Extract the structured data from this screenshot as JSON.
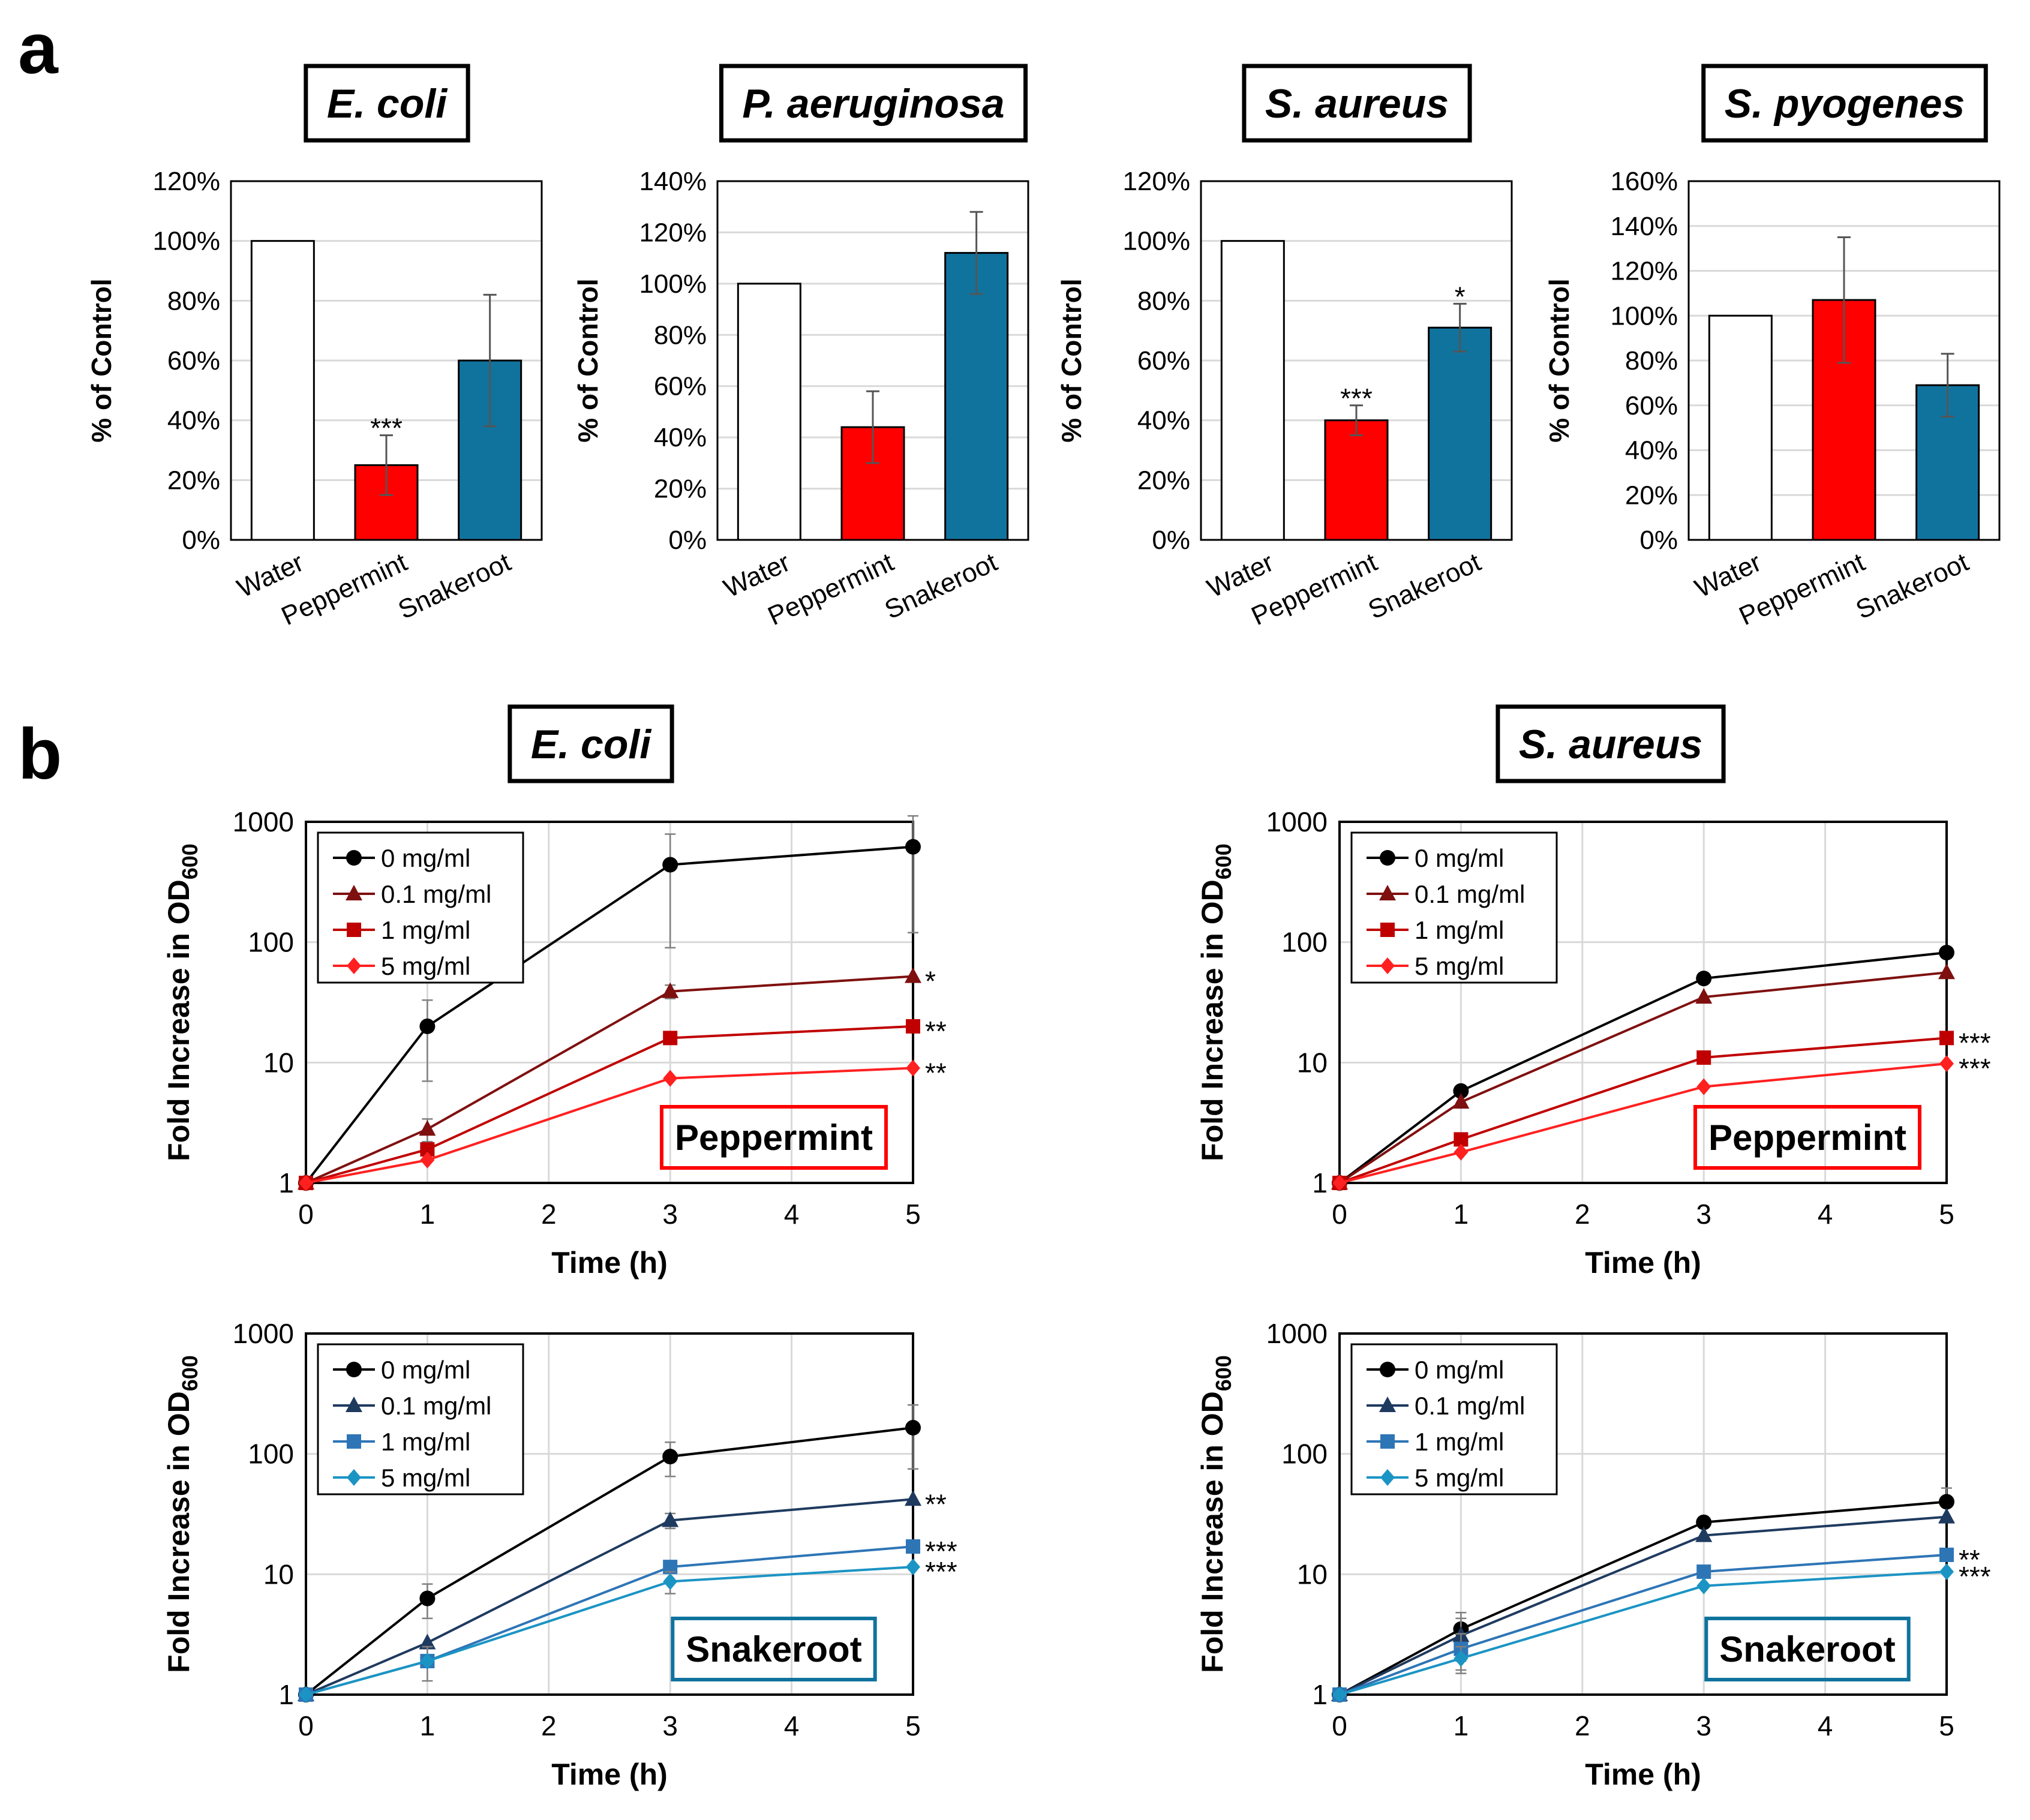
{
  "panels": {
    "a": "a",
    "b": "b"
  },
  "colors": {
    "water": "#ffffff",
    "peppermint": "#ff0000",
    "snakeroot": "#10739e",
    "pep_0": "#000000",
    "pep_01": "#7f1010",
    "pep_1": "#c00000",
    "pep_5": "#ff2020",
    "snk_0": "#000000",
    "snk_01": "#1f3a5f",
    "snk_1": "#2e75b6",
    "snk_5": "#1b94c4"
  },
  "chart_data": [
    {
      "type": "bar",
      "panel": "a",
      "title": "E. coli",
      "categories": [
        "Water",
        "Peppermint",
        "Snakeroot"
      ],
      "values": [
        100,
        25,
        60
      ],
      "errors": [
        0,
        10,
        22
      ],
      "significance": [
        "",
        "***",
        ""
      ],
      "ylabel": "% of Control",
      "ylim": [
        0,
        120
      ],
      "yticks": [
        0,
        20,
        40,
        60,
        80,
        100,
        120
      ],
      "tick_suffix": "%",
      "grid": true
    },
    {
      "type": "bar",
      "panel": "a",
      "title": "P. aeruginosa",
      "categories": [
        "Water",
        "Peppermint",
        "Snakeroot"
      ],
      "values": [
        100,
        44,
        112
      ],
      "errors": [
        0,
        14,
        16
      ],
      "significance": [
        "",
        "",
        ""
      ],
      "ylabel": "% of Control",
      "ylim": [
        0,
        140
      ],
      "yticks": [
        0,
        20,
        40,
        60,
        80,
        100,
        120,
        140
      ],
      "tick_suffix": "%",
      "grid": true
    },
    {
      "type": "bar",
      "panel": "a",
      "title": "S. aureus",
      "categories": [
        "Water",
        "Peppermint",
        "Snakeroot"
      ],
      "values": [
        100,
        40,
        71
      ],
      "errors": [
        0,
        5,
        8
      ],
      "significance": [
        "",
        "***",
        "*"
      ],
      "ylabel": "% of Control",
      "ylim": [
        0,
        120
      ],
      "yticks": [
        0,
        20,
        40,
        60,
        80,
        100,
        120
      ],
      "tick_suffix": "%",
      "grid": true
    },
    {
      "type": "bar",
      "panel": "a",
      "title": "S. pyogenes",
      "categories": [
        "Water",
        "Peppermint",
        "Snakeroot"
      ],
      "values": [
        100,
        107,
        69
      ],
      "errors": [
        0,
        28,
        14
      ],
      "significance": [
        "",
        "",
        ""
      ],
      "ylabel": "% of Control",
      "ylim": [
        0,
        160
      ],
      "yticks": [
        0,
        20,
        40,
        60,
        80,
        100,
        120,
        140,
        160
      ],
      "tick_suffix": "%",
      "grid": true
    },
    {
      "type": "line",
      "panel": "b",
      "organism": "E. coli",
      "agent": "Peppermint",
      "agent_color": "peppermint",
      "x": [
        0,
        1,
        3,
        5
      ],
      "xlabel": "Time (h)",
      "xlim": [
        0,
        5
      ],
      "xticks": [
        0,
        1,
        2,
        3,
        4,
        5
      ],
      "ylabel": "Fold Increase in OD",
      "ylabel_sub": "600",
      "yscale": "log",
      "ylim": [
        1,
        1000
      ],
      "yticks": [
        1,
        10,
        100,
        1000
      ],
      "legend_position": "top-left",
      "grid": true,
      "series": [
        {
          "name": "0 mg/ml",
          "marker": "circle",
          "color": "pep_0",
          "values": [
            1,
            20,
            440,
            620
          ],
          "errors": [
            0,
            13,
            350,
            500
          ],
          "sig": ""
        },
        {
          "name": "0.1 mg/ml",
          "marker": "triangle",
          "color": "pep_01",
          "values": [
            1,
            2.8,
            39,
            52
          ],
          "errors": [
            0,
            0.6,
            5,
            0
          ],
          "sig": "*"
        },
        {
          "name": "1 mg/ml",
          "marker": "square",
          "color": "pep_1",
          "values": [
            1,
            1.9,
            16,
            20
          ],
          "errors": [
            0,
            0,
            0,
            0
          ],
          "sig": "**"
        },
        {
          "name": "5 mg/ml",
          "marker": "diamond",
          "color": "pep_5",
          "values": [
            1,
            1.55,
            7.4,
            9
          ],
          "errors": [
            0,
            0,
            0,
            0
          ],
          "sig": "**"
        }
      ]
    },
    {
      "type": "line",
      "panel": "b",
      "organism": "S. aureus",
      "agent": "Peppermint",
      "agent_color": "peppermint",
      "x": [
        0,
        1,
        3,
        5
      ],
      "xlabel": "Time (h)",
      "xlim": [
        0,
        5
      ],
      "xticks": [
        0,
        1,
        2,
        3,
        4,
        5
      ],
      "ylabel": "Fold Increase in OD",
      "ylabel_sub": "600",
      "yscale": "log",
      "ylim": [
        1,
        1000
      ],
      "yticks": [
        1,
        10,
        100,
        1000
      ],
      "legend_position": "top-left",
      "grid": true,
      "series": [
        {
          "name": "0 mg/ml",
          "marker": "circle",
          "color": "pep_0",
          "values": [
            1,
            5.8,
            50,
            82
          ],
          "errors": [
            0,
            0,
            0,
            0
          ],
          "sig": ""
        },
        {
          "name": "0.1 mg/ml",
          "marker": "triangle",
          "color": "pep_01",
          "values": [
            1,
            4.7,
            35,
            56
          ],
          "errors": [
            0,
            0,
            0,
            0
          ],
          "sig": ""
        },
        {
          "name": "1 mg/ml",
          "marker": "square",
          "color": "pep_1",
          "values": [
            1,
            2.3,
            11,
            16
          ],
          "errors": [
            0,
            0,
            0,
            0
          ],
          "sig": "***"
        },
        {
          "name": "5 mg/ml",
          "marker": "diamond",
          "color": "pep_5",
          "values": [
            1,
            1.8,
            6.3,
            9.8
          ],
          "errors": [
            0,
            0,
            0,
            0
          ],
          "sig": "***"
        }
      ]
    },
    {
      "type": "line",
      "panel": "b",
      "organism": "E. coli",
      "agent": "Snakeroot",
      "agent_color": "snakeroot",
      "x": [
        0,
        1,
        3,
        5
      ],
      "xlabel": "Time (h)",
      "xlim": [
        0,
        5
      ],
      "xticks": [
        0,
        1,
        2,
        3,
        4,
        5
      ],
      "ylabel": "Fold Increase in OD",
      "ylabel_sub": "600",
      "yscale": "log",
      "ylim": [
        1,
        1000
      ],
      "yticks": [
        1,
        10,
        100,
        1000
      ],
      "legend_position": "top-left",
      "grid": true,
      "series": [
        {
          "name": "0 mg/ml",
          "marker": "circle",
          "color": "snk_0",
          "values": [
            1,
            6.3,
            95,
            165
          ],
          "errors": [
            0,
            2,
            30,
            90
          ],
          "sig": ""
        },
        {
          "name": "0.1 mg/ml",
          "marker": "triangle",
          "color": "snk_01",
          "values": [
            1,
            2.7,
            28,
            42
          ],
          "errors": [
            0,
            0,
            4,
            0
          ],
          "sig": "**"
        },
        {
          "name": "1 mg/ml",
          "marker": "square",
          "color": "snk_1",
          "values": [
            1,
            1.9,
            11.5,
            17
          ],
          "errors": [
            0,
            0.6,
            0,
            0
          ],
          "sig": "***"
        },
        {
          "name": "5 mg/ml",
          "marker": "diamond",
          "color": "snk_5",
          "values": [
            1,
            1.9,
            8.7,
            11.5
          ],
          "errors": [
            0,
            0,
            1.8,
            0
          ],
          "sig": "***"
        }
      ]
    },
    {
      "type": "line",
      "panel": "b",
      "organism": "S. aureus",
      "agent": "Snakeroot",
      "agent_color": "snakeroot",
      "x": [
        0,
        1,
        3,
        5
      ],
      "xlabel": "Time (h)",
      "xlim": [
        0,
        5
      ],
      "xticks": [
        0,
        1,
        2,
        3,
        4,
        5
      ],
      "ylabel": "Fold Increase in OD",
      "ylabel_sub": "600",
      "yscale": "log",
      "ylim": [
        1,
        1000
      ],
      "yticks": [
        1,
        10,
        100,
        1000
      ],
      "legend_position": "top-left",
      "grid": true,
      "series": [
        {
          "name": "0 mg/ml",
          "marker": "circle",
          "color": "snk_0",
          "values": [
            1,
            3.5,
            27,
            40
          ],
          "errors": [
            0,
            1.3,
            0,
            12
          ],
          "sig": ""
        },
        {
          "name": "0.1 mg/ml",
          "marker": "triangle",
          "color": "snk_01",
          "values": [
            1,
            3.1,
            21,
            30
          ],
          "errors": [
            0,
            1.2,
            0,
            0
          ],
          "sig": ""
        },
        {
          "name": "1 mg/ml",
          "marker": "square",
          "color": "snk_1",
          "values": [
            1,
            2.4,
            10.5,
            14.5
          ],
          "errors": [
            0,
            0.8,
            0,
            0
          ],
          "sig": "**"
        },
        {
          "name": "5 mg/ml",
          "marker": "diamond",
          "color": "snk_5",
          "values": [
            1,
            2,
            8,
            10.5
          ],
          "errors": [
            0,
            0.5,
            0,
            0
          ],
          "sig": "***"
        }
      ]
    }
  ]
}
